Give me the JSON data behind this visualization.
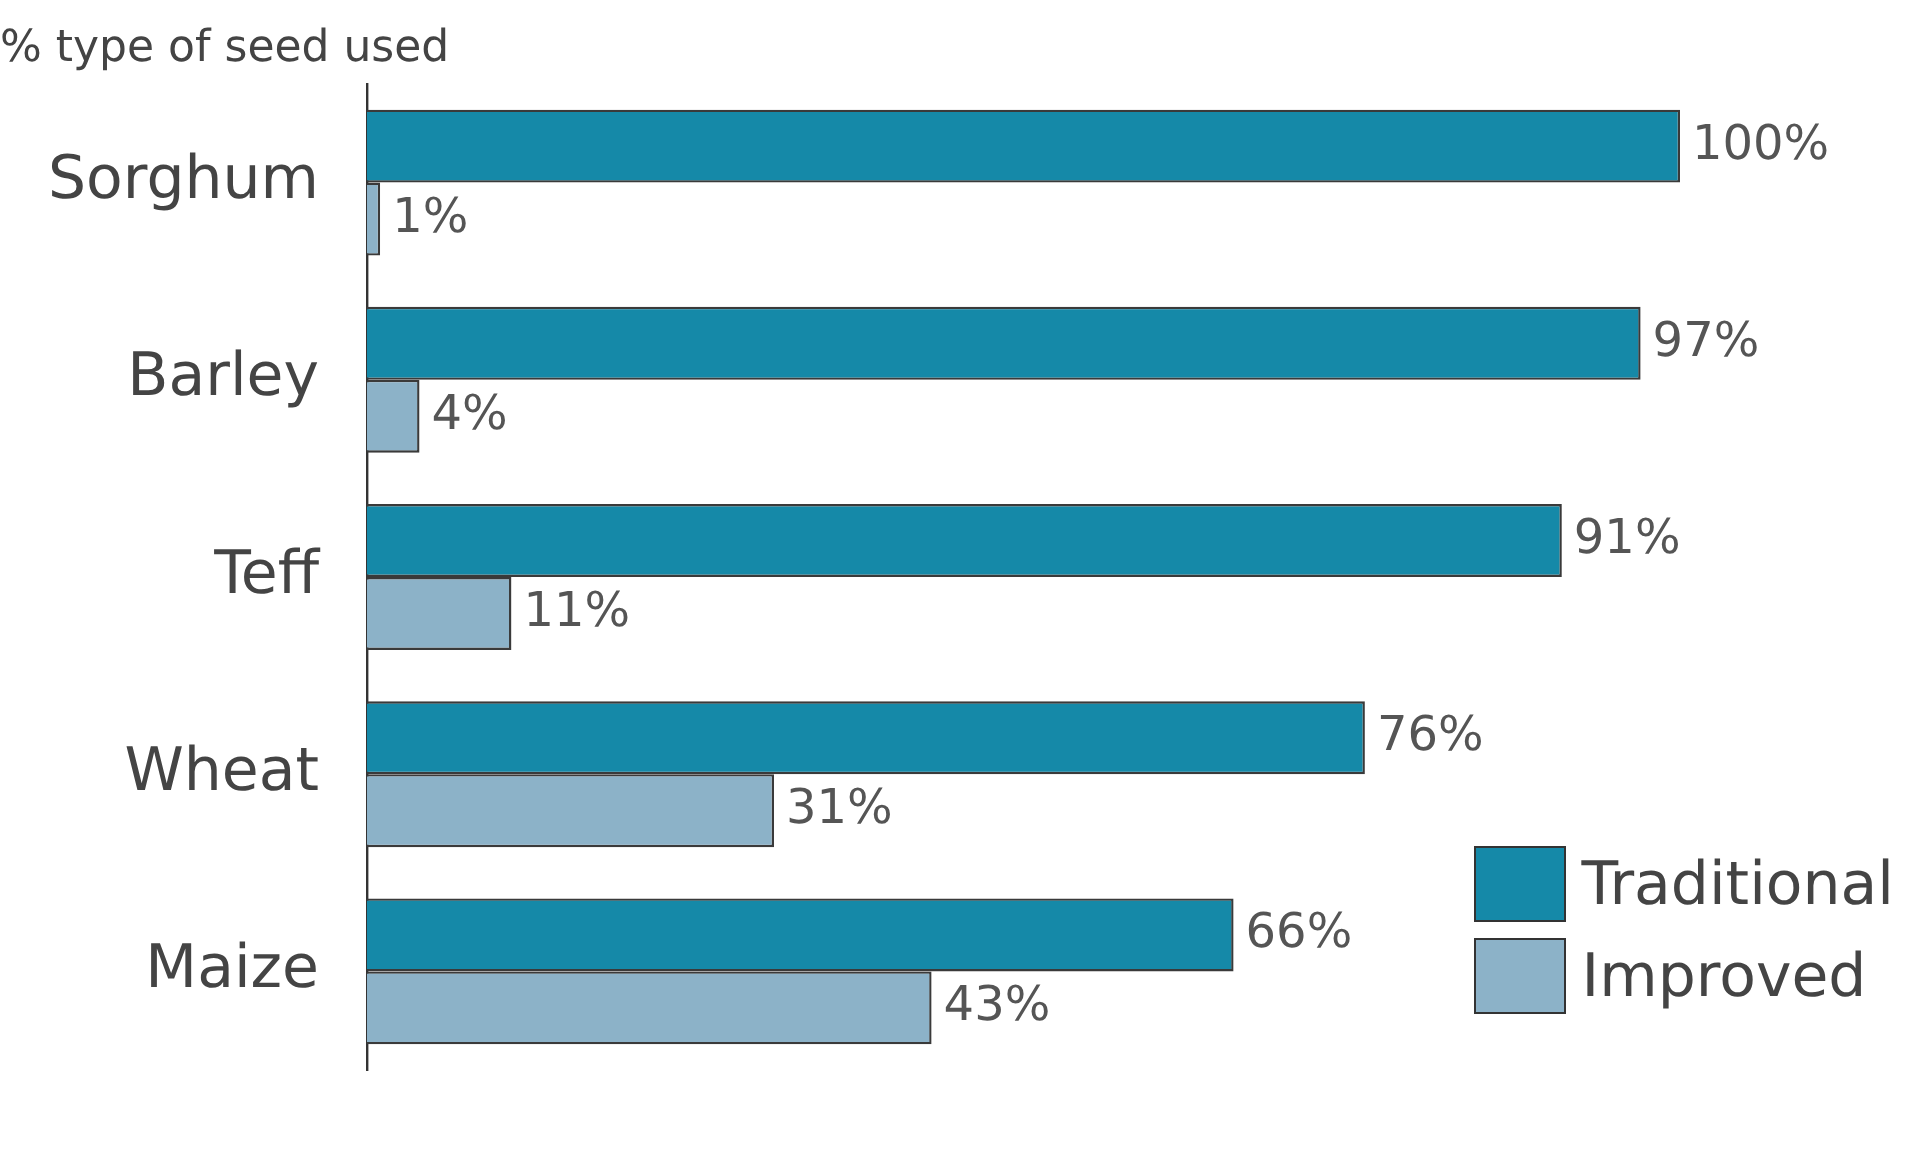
{
  "chart_data": {
    "type": "bar",
    "orientation": "horizontal",
    "title": "% type of seed used",
    "categories": [
      "Sorghum",
      "Barley",
      "Teff",
      "Wheat",
      "Maize"
    ],
    "series": [
      {
        "name": "Traditional",
        "color": "#1589a8",
        "values": [
          100,
          97,
          91,
          76,
          66
        ],
        "value_labels": [
          "100%",
          "97%",
          "91%",
          "76%",
          "66%"
        ]
      },
      {
        "name": "Improved",
        "color": "#8cb2c8",
        "values": [
          1,
          4,
          11,
          31,
          43
        ],
        "value_labels": [
          "1%",
          "4%",
          "11%",
          "31%",
          "43%"
        ]
      }
    ],
    "xlim": [
      0,
      100
    ],
    "tick_labels": "y",
    "legend": "bottom right"
  }
}
